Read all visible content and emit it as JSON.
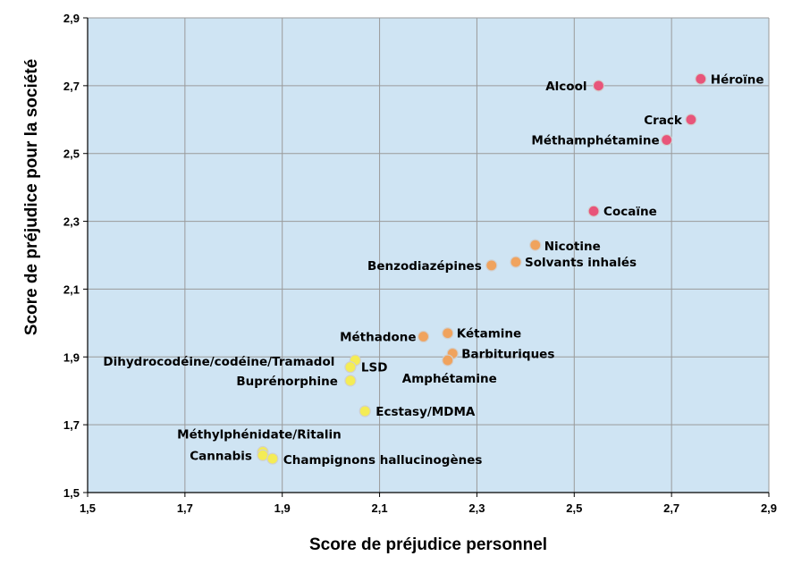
{
  "chart_data": {
    "type": "scatter",
    "xlabel": "Score de préjudice personnel",
    "ylabel": "Score de préjudice pour la société",
    "xlim": [
      1.5,
      2.9
    ],
    "ylim": [
      1.5,
      2.9
    ],
    "x_ticks": [
      "1,5",
      "1,7",
      "1,9",
      "2,1",
      "2,3",
      "2,5",
      "2,7",
      "2,9"
    ],
    "y_ticks": [
      "1,5",
      "1,7",
      "1,9",
      "2,1",
      "2,3",
      "2,5",
      "2,7",
      "2,9"
    ],
    "grid": true,
    "colors": {
      "plot_background": "#cfe4f3",
      "grid": "#9a9a9a",
      "high_harm": "#e8557a",
      "medium_harm": "#f0a35e",
      "low_harm": "#f4ec55"
    },
    "points": [
      {
        "label": "Héroïne",
        "x": 2.76,
        "y": 2.72,
        "group": "high_harm"
      },
      {
        "label": "Alcool",
        "x": 2.55,
        "y": 2.7,
        "group": "high_harm"
      },
      {
        "label": "Crack",
        "x": 2.74,
        "y": 2.6,
        "group": "high_harm"
      },
      {
        "label": "Méthamphétamine",
        "x": 2.69,
        "y": 2.54,
        "group": "high_harm"
      },
      {
        "label": "Cocaïne",
        "x": 2.54,
        "y": 2.33,
        "group": "high_harm"
      },
      {
        "label": "Nicotine",
        "x": 2.42,
        "y": 2.23,
        "group": "medium_harm"
      },
      {
        "label": "Solvants inhalés",
        "x": 2.38,
        "y": 2.18,
        "group": "medium_harm"
      },
      {
        "label": "Benzodiazépines",
        "x": 2.33,
        "y": 2.17,
        "group": "medium_harm"
      },
      {
        "label": "Kétamine",
        "x": 2.24,
        "y": 1.97,
        "group": "medium_harm"
      },
      {
        "label": "Méthadone",
        "x": 2.19,
        "y": 1.96,
        "group": "medium_harm"
      },
      {
        "label": "Barbituriques",
        "x": 2.25,
        "y": 1.91,
        "group": "medium_harm"
      },
      {
        "label": "Amphétamine",
        "x": 2.24,
        "y": 1.89,
        "group": "medium_harm"
      },
      {
        "label": "Dihydrocodéine/codéine/Tramadol",
        "x": 2.05,
        "y": 1.89,
        "group": "low_harm"
      },
      {
        "label": "LSD",
        "x": 2.04,
        "y": 1.87,
        "group": "low_harm"
      },
      {
        "label": "Buprénorphine",
        "x": 2.04,
        "y": 1.83,
        "group": "low_harm"
      },
      {
        "label": "Ecstasy/MDMA",
        "x": 2.07,
        "y": 1.74,
        "group": "low_harm"
      },
      {
        "label": "Méthylphénidate/Ritalin",
        "x": 1.86,
        "y": 1.62,
        "group": "low_harm"
      },
      {
        "label": "Cannabis",
        "x": 1.86,
        "y": 1.61,
        "group": "low_harm"
      },
      {
        "label": "Champignons hallucinogènes",
        "x": 1.88,
        "y": 1.6,
        "group": "low_harm"
      }
    ]
  }
}
